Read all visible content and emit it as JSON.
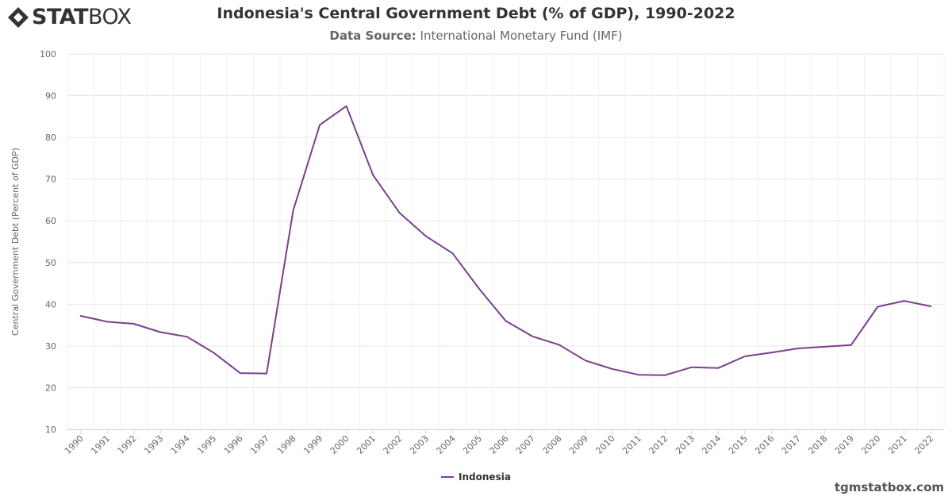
{
  "brand": {
    "logo_bold": "STAT",
    "logo_light": "BOX",
    "watermark": "tgmstatbox.com"
  },
  "title": "Indonesia's Central Government Debt (% of GDP), 1990-2022",
  "subtitle": {
    "label": "Data Source:",
    "text": " International Monetary Fund (IMF)"
  },
  "chart_data": {
    "type": "line",
    "title": "Indonesia's Central Government Debt (% of GDP), 1990-2022",
    "xlabel": "",
    "ylabel": "Central Government Debt (Percent of GDP)",
    "ylim": [
      10,
      100
    ],
    "yticks": [
      10,
      20,
      30,
      40,
      50,
      60,
      70,
      80,
      90,
      100
    ],
    "grid": true,
    "legend_position": "bottom-center",
    "categories": [
      "1990",
      "1991",
      "1992",
      "1993",
      "1994",
      "1995",
      "1996",
      "1997",
      "1998",
      "1999",
      "2000",
      "2001",
      "2002",
      "2003",
      "2004",
      "2005",
      "2006",
      "2007",
      "2008",
      "2009",
      "2010",
      "2011",
      "2012",
      "2013",
      "2014",
      "2015",
      "2016",
      "2017",
      "2018",
      "2019",
      "2020",
      "2021",
      "2022"
    ],
    "series": [
      {
        "name": "Indonesia",
        "color": "#7b3f8c",
        "values": [
          37.2,
          35.8,
          35.3,
          33.3,
          32.2,
          28.4,
          23.5,
          23.4,
          62.5,
          83.0,
          87.5,
          71.0,
          61.9,
          56.3,
          52.2,
          43.7,
          36.0,
          32.3,
          30.3,
          26.5,
          24.5,
          23.1,
          23.0,
          24.9,
          24.7,
          27.5,
          28.4,
          29.4,
          29.8,
          30.2,
          39.4,
          40.8,
          39.5
        ]
      }
    ]
  }
}
